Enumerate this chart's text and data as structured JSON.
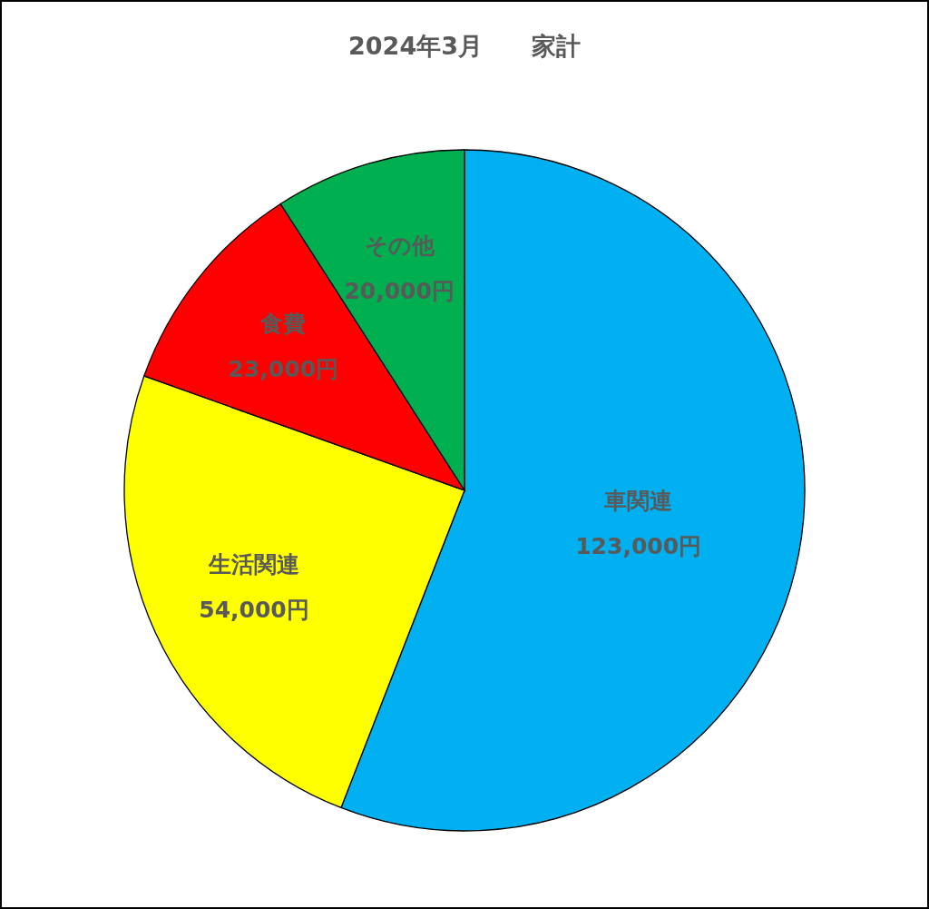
{
  "chart_data": {
    "type": "pie",
    "title": "2024年3月　　家計",
    "categories": [
      "車関連",
      "生活関連",
      "食費",
      "その他"
    ],
    "values": [
      123000,
      54000,
      23000,
      20000
    ],
    "colors": [
      "#00b0f0",
      "#ffff00",
      "#ff0000",
      "#00b050"
    ],
    "value_labels": [
      "123,000円",
      "54,000円",
      "23,000円",
      "20,000円"
    ],
    "legend": false
  }
}
